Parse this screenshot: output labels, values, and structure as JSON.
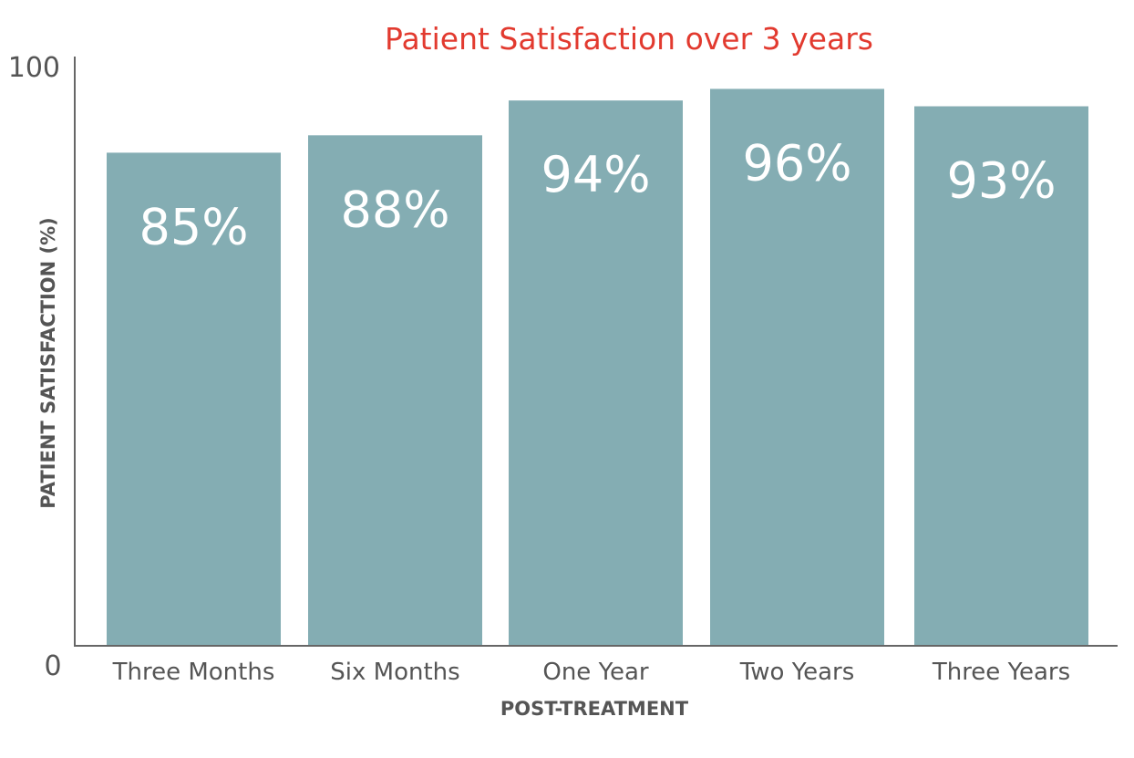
{
  "chart_data": {
    "type": "bar",
    "title": "Patient Satisfaction over 3 years",
    "xlabel": "POST-TREATMENT",
    "ylabel": "PATIENT SATISFACTION (%)",
    "categories": [
      "Three Months",
      "Six Months",
      "One Year",
      "Two Years",
      "Three Years"
    ],
    "values": [
      85,
      88,
      94,
      96,
      93
    ],
    "data_labels": [
      "85%",
      "88%",
      "94%",
      "96%",
      "93%"
    ],
    "ylim": [
      0,
      100
    ],
    "y_tick_labels": [
      "0",
      "100"
    ],
    "grid": false,
    "legend": "none",
    "colors": {
      "bar": "#84adb3",
      "title": "#e23a2f",
      "axis": "#666666",
      "text": "#555555"
    }
  }
}
